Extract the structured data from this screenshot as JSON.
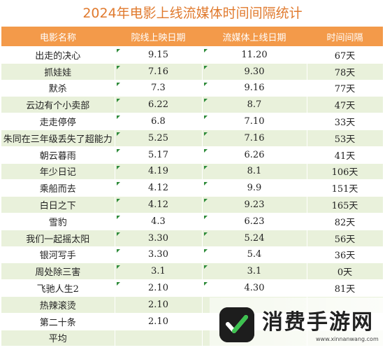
{
  "title": "2024年电影上线流媒体时间间隔统计",
  "headers": [
    "电影名称",
    "院线上映日期",
    "流媒体上线日期",
    "时间间隔"
  ],
  "rows": [
    {
      "name": "出走的决心",
      "release": "9.15",
      "stream": "11.20",
      "gap": "67天"
    },
    {
      "name": "抓娃娃",
      "release": "7.16",
      "stream": "9.30",
      "gap": "78天"
    },
    {
      "name": "默杀",
      "release": "7.3",
      "stream": "9.16",
      "gap": "77天"
    },
    {
      "name": "云边有个小卖部",
      "release": "6.22",
      "stream": "8.7",
      "gap": "47天"
    },
    {
      "name": "走走停停",
      "release": "6.8",
      "stream": "7.10",
      "gap": "33天"
    },
    {
      "name": "朱同在三年级丢失了超能力",
      "release": "5.25",
      "stream": "7.16",
      "gap": "53天"
    },
    {
      "name": "朝云暮雨",
      "release": "5.17",
      "stream": "6.26",
      "gap": "41天"
    },
    {
      "name": "年少日记",
      "release": "4.19",
      "stream": "8.1",
      "gap": "106天"
    },
    {
      "name": "乘船而去",
      "release": "4.12",
      "stream": "9.9",
      "gap": "151天"
    },
    {
      "name": "白日之下",
      "release": "4.12",
      "stream": "9.23",
      "gap": "165天"
    },
    {
      "name": "雪豹",
      "release": "4.3",
      "stream": "6.23",
      "gap": "82天"
    },
    {
      "name": "我们一起摇太阳",
      "release": "3.30",
      "stream": "5.24",
      "gap": "56天"
    },
    {
      "name": "银河写手",
      "release": "3.30",
      "stream": "5.4",
      "gap": "36天"
    },
    {
      "name": "周处除三害",
      "release": "3.1",
      "stream": "3.1",
      "gap": "0天"
    },
    {
      "name": "飞驰人生2",
      "release": "2.10",
      "stream": "4.30",
      "gap": "81天"
    },
    {
      "name": "热辣滚烫",
      "release": "2.10",
      "stream": "",
      "gap": ""
    },
    {
      "name": "第二十条",
      "release": "2.10",
      "stream": "",
      "gap": ""
    },
    {
      "name": "平均",
      "release": "",
      "stream": "",
      "gap": ""
    }
  ],
  "watermark": {
    "text": "消费手游网",
    "url": "www.xinnanwang.com"
  },
  "colors": {
    "header_bg": "#f39a4a",
    "stripe": "#e9f1db",
    "title": "#e07a2e"
  }
}
